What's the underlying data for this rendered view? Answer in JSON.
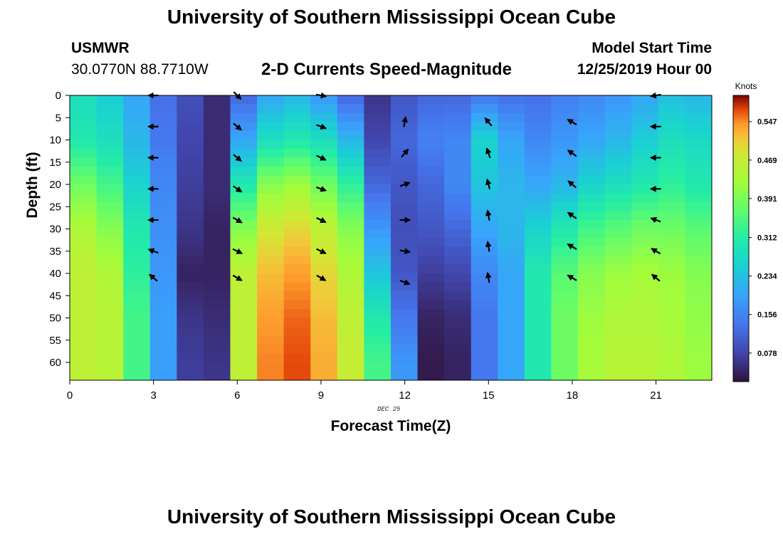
{
  "page": {
    "title": "University of Southern Mississippi Ocean Cube",
    "title_repeat": "University of Southern Mississippi Ocean Cube",
    "station": "USMWR",
    "coords": "30.0770N  88.7710W",
    "chart_title": "2-D Currents Speed-Magnitude",
    "model_start_label": "Model Start Time",
    "model_start_value": "12/25/2019 Hour 00",
    "date_tag": "DEC 25"
  },
  "chart_data": {
    "type": "heatmap",
    "title": "2-D Currents Speed-Magnitude",
    "xlabel": "Forecast Time(Z)",
    "ylabel": "Depth (ft)",
    "xlim": [
      0,
      23
    ],
    "ylim": [
      0,
      64
    ],
    "x_ticks": [
      0,
      3,
      6,
      9,
      12,
      15,
      18,
      21
    ],
    "y_ticks": [
      0,
      5,
      10,
      15,
      20,
      25,
      30,
      35,
      40,
      45,
      50,
      55,
      60
    ],
    "colorbar": {
      "label": "Knots",
      "ticks": [
        0.078,
        0.156,
        0.234,
        0.312,
        0.391,
        0.469,
        0.547
      ],
      "range": [
        0.02,
        0.6
      ]
    },
    "columns_speed_knots": {
      "hours": [
        0,
        1,
        2,
        3,
        4,
        5,
        6,
        7,
        8,
        9,
        10,
        11,
        12,
        13,
        14,
        15,
        16,
        17,
        18,
        19,
        20,
        21,
        22,
        23
      ],
      "surface_0ft": [
        0.28,
        0.25,
        0.2,
        0.13,
        0.09,
        0.05,
        0.12,
        0.2,
        0.22,
        0.18,
        0.12,
        0.06,
        0.1,
        0.12,
        0.12,
        0.14,
        0.13,
        0.13,
        0.15,
        0.16,
        0.18,
        0.2,
        0.23,
        0.22
      ],
      "depth_10ft": [
        0.3,
        0.28,
        0.22,
        0.14,
        0.08,
        0.05,
        0.2,
        0.28,
        0.3,
        0.28,
        0.22,
        0.08,
        0.12,
        0.15,
        0.16,
        0.26,
        0.2,
        0.16,
        0.18,
        0.2,
        0.22,
        0.25,
        0.28,
        0.27
      ],
      "depth_20ft": [
        0.38,
        0.34,
        0.26,
        0.16,
        0.07,
        0.05,
        0.3,
        0.4,
        0.42,
        0.38,
        0.32,
        0.12,
        0.1,
        0.12,
        0.16,
        0.24,
        0.22,
        0.2,
        0.22,
        0.26,
        0.28,
        0.3,
        0.32,
        0.3
      ],
      "depth_30ft": [
        0.44,
        0.4,
        0.3,
        0.17,
        0.06,
        0.04,
        0.4,
        0.48,
        0.5,
        0.46,
        0.4,
        0.18,
        0.09,
        0.1,
        0.12,
        0.2,
        0.22,
        0.26,
        0.3,
        0.34,
        0.36,
        0.38,
        0.38,
        0.36
      ],
      "depth_40ft": [
        0.46,
        0.44,
        0.32,
        0.18,
        0.04,
        0.04,
        0.46,
        0.52,
        0.54,
        0.5,
        0.44,
        0.24,
        0.1,
        0.07,
        0.08,
        0.16,
        0.2,
        0.3,
        0.36,
        0.4,
        0.42,
        0.43,
        0.42,
        0.4
      ],
      "depth_50ft": [
        0.46,
        0.45,
        0.34,
        0.19,
        0.06,
        0.05,
        0.46,
        0.54,
        0.56,
        0.52,
        0.46,
        0.3,
        0.14,
        0.04,
        0.05,
        0.14,
        0.2,
        0.3,
        0.38,
        0.42,
        0.44,
        0.44,
        0.43,
        0.41
      ],
      "depth_60ft": [
        0.46,
        0.45,
        0.34,
        0.19,
        0.07,
        0.06,
        0.46,
        0.55,
        0.57,
        0.53,
        0.47,
        0.34,
        0.18,
        0.03,
        0.04,
        0.14,
        0.2,
        0.3,
        0.38,
        0.43,
        0.45,
        0.45,
        0.44,
        0.42
      ]
    },
    "current_vectors": [
      {
        "hour": 3,
        "depths_ft": [
          0,
          7,
          14,
          21,
          28,
          35,
          41
        ],
        "dir_deg": [
          180,
          180,
          180,
          180,
          180,
          200,
          -140
        ]
      },
      {
        "hour": 6,
        "depths_ft": [
          0,
          7,
          14,
          21,
          28,
          35,
          41
        ],
        "dir_deg": [
          45,
          40,
          40,
          35,
          30,
          25,
          30
        ]
      },
      {
        "hour": 9,
        "depths_ft": [
          0,
          7,
          14,
          21,
          28,
          35,
          41
        ],
        "dir_deg": [
          10,
          20,
          25,
          20,
          25,
          25,
          30
        ]
      },
      {
        "hour": 12,
        "depths_ft": [
          6,
          13,
          20,
          28,
          35,
          42
        ],
        "dir_deg": [
          -80,
          -50,
          -20,
          0,
          10,
          20
        ]
      },
      {
        "hour": 15,
        "depths_ft": [
          6,
          13,
          20,
          27,
          34,
          41
        ],
        "dir_deg": [
          -130,
          -110,
          -105,
          -100,
          -100,
          -100
        ]
      },
      {
        "hour": 18,
        "depths_ft": [
          6,
          13,
          20,
          27,
          34,
          41
        ],
        "dir_deg": [
          -150,
          -145,
          -140,
          -145,
          -150,
          -150
        ]
      },
      {
        "hour": 21,
        "depths_ft": [
          0,
          7,
          14,
          21,
          28,
          35,
          41
        ],
        "dir_deg": [
          170,
          180,
          180,
          180,
          200,
          210,
          220
        ]
      }
    ]
  }
}
